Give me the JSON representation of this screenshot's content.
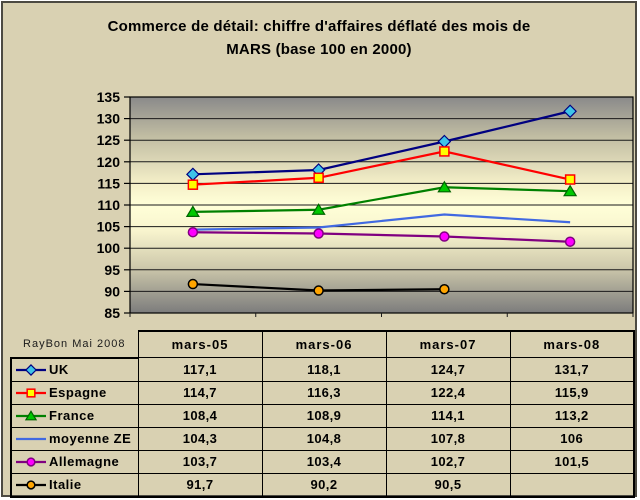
{
  "window": {
    "bg_color": "#d9d1b2",
    "border_color": "#4c4a42"
  },
  "chart_data": {
    "type": "line",
    "title": "Commerce de détail: chiffre d'affaires déflaté des mois de MARS (base 100 en 2000)",
    "title_lines": [
      "Commerce de détail: chiffre d'affaires déflaté des mois de",
      "MARS (base 100 en 2000)"
    ],
    "categories": [
      "mars-05",
      "mars-06",
      "mars-07",
      "mars-08"
    ],
    "series": [
      {
        "name": "UK",
        "color": "#000080",
        "marker": "diamond",
        "marker_fill": "#3ec4e8",
        "marker_stroke": "#000080",
        "values": [
          117.1,
          118.1,
          124.7,
          131.7
        ]
      },
      {
        "name": "Espagne",
        "color": "#ff0000",
        "marker": "square",
        "marker_fill": "#ffff00",
        "marker_stroke": "#ff0000",
        "values": [
          114.7,
          116.3,
          122.4,
          115.9
        ]
      },
      {
        "name": "France",
        "color": "#008000",
        "marker": "triangle",
        "marker_fill": "#00c800",
        "marker_stroke": "#006400",
        "values": [
          108.4,
          108.9,
          114.1,
          113.2
        ]
      },
      {
        "name": "moyenne ZE",
        "color": "#4169e1",
        "marker": "none",
        "marker_fill": "",
        "marker_stroke": "",
        "values": [
          104.3,
          104.8,
          107.8,
          106
        ]
      },
      {
        "name": "Allemagne",
        "color": "#800080",
        "marker": "circle",
        "marker_fill": "#ff00ff",
        "marker_stroke": "#800080",
        "values": [
          103.7,
          103.4,
          102.7,
          101.5
        ]
      },
      {
        "name": "Italie",
        "color": "#000000",
        "marker": "circle",
        "marker_fill": "#ffa500",
        "marker_stroke": "#000000",
        "values": [
          91.7,
          90.2,
          90.5,
          null
        ]
      }
    ],
    "ylim": [
      85,
      135
    ],
    "ytick_step": 5,
    "yticks": [
      135,
      130,
      125,
      120,
      115,
      110,
      105,
      100,
      95,
      90,
      85
    ],
    "grid": "horizontal",
    "legend_position": "table-left",
    "plot_gradient": [
      {
        "offset": 0,
        "color": "#8a8a8a"
      },
      {
        "offset": 0.18,
        "color": "#c0bca2"
      },
      {
        "offset": 0.4,
        "color": "#f4efc8"
      },
      {
        "offset": 0.5,
        "color": "#ffffd8"
      },
      {
        "offset": 0.62,
        "color": "#f8f4ce"
      },
      {
        "offset": 0.78,
        "color": "#d0cbad"
      },
      {
        "offset": 1,
        "color": "#7c7c7c"
      }
    ]
  },
  "table": {
    "corner_label": "RayBon Mai 2008",
    "columns": [
      "mars-05",
      "mars-06",
      "mars-07",
      "mars-08"
    ],
    "rows": [
      {
        "name": "UK",
        "cells": [
          "117,1",
          "118,1",
          "124,7",
          "131,7"
        ]
      },
      {
        "name": "Espagne",
        "cells": [
          "114,7",
          "116,3",
          "122,4",
          "115,9"
        ]
      },
      {
        "name": "France",
        "cells": [
          "108,4",
          "108,9",
          "114,1",
          "113,2"
        ]
      },
      {
        "name": "moyenne ZE",
        "cells": [
          "104,3",
          "104,8",
          "107,8",
          "106"
        ]
      },
      {
        "name": "Allemagne",
        "cells": [
          "103,7",
          "103,4",
          "102,7",
          "101,5"
        ]
      },
      {
        "name": "Italie",
        "cells": [
          "91,7",
          "90,2",
          "90,5",
          ""
        ]
      }
    ]
  }
}
